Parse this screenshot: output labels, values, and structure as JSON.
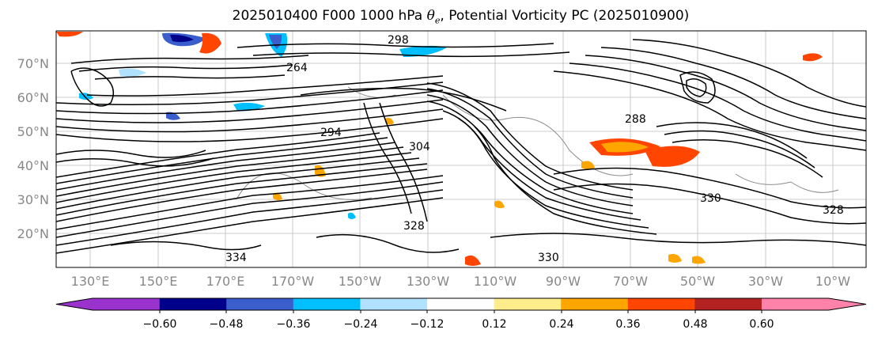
{
  "map": {
    "title_prefix": "2025010400 F000 1000 hPa ",
    "title_symbol": "θe",
    "title_suffix": ", Potential Vorticity PC (2025010900)",
    "lat_labels": [
      "70°N",
      "60°N",
      "50°N",
      "40°N",
      "30°N",
      "20°N"
    ],
    "lon_labels": [
      "130°E",
      "150°E",
      "170°E",
      "170°W",
      "150°W",
      "130°W",
      "110°W",
      "90°W",
      "70°W",
      "50°W",
      "30°W",
      "10°W"
    ],
    "contour_labels": [
      "264",
      "298",
      "294",
      "304",
      "288",
      "328",
      "330",
      "334",
      "328",
      "330"
    ],
    "colorbar": {
      "ticks": [
        "−0.60",
        "−0.48",
        "−0.36",
        "−0.24",
        "−0.12",
        "0.12",
        "0.24",
        "0.36",
        "0.48",
        "0.60"
      ],
      "colors": [
        "#9a32cd",
        "#00008b",
        "#3a5fcd",
        "#00bfff",
        "#b0e2ff",
        "#ffffff",
        "#ffec8b",
        "#ffa500",
        "#ff4500",
        "#b22222",
        "#ff82ab"
      ]
    },
    "label_color": "#888888",
    "contour_color": "#000000"
  }
}
